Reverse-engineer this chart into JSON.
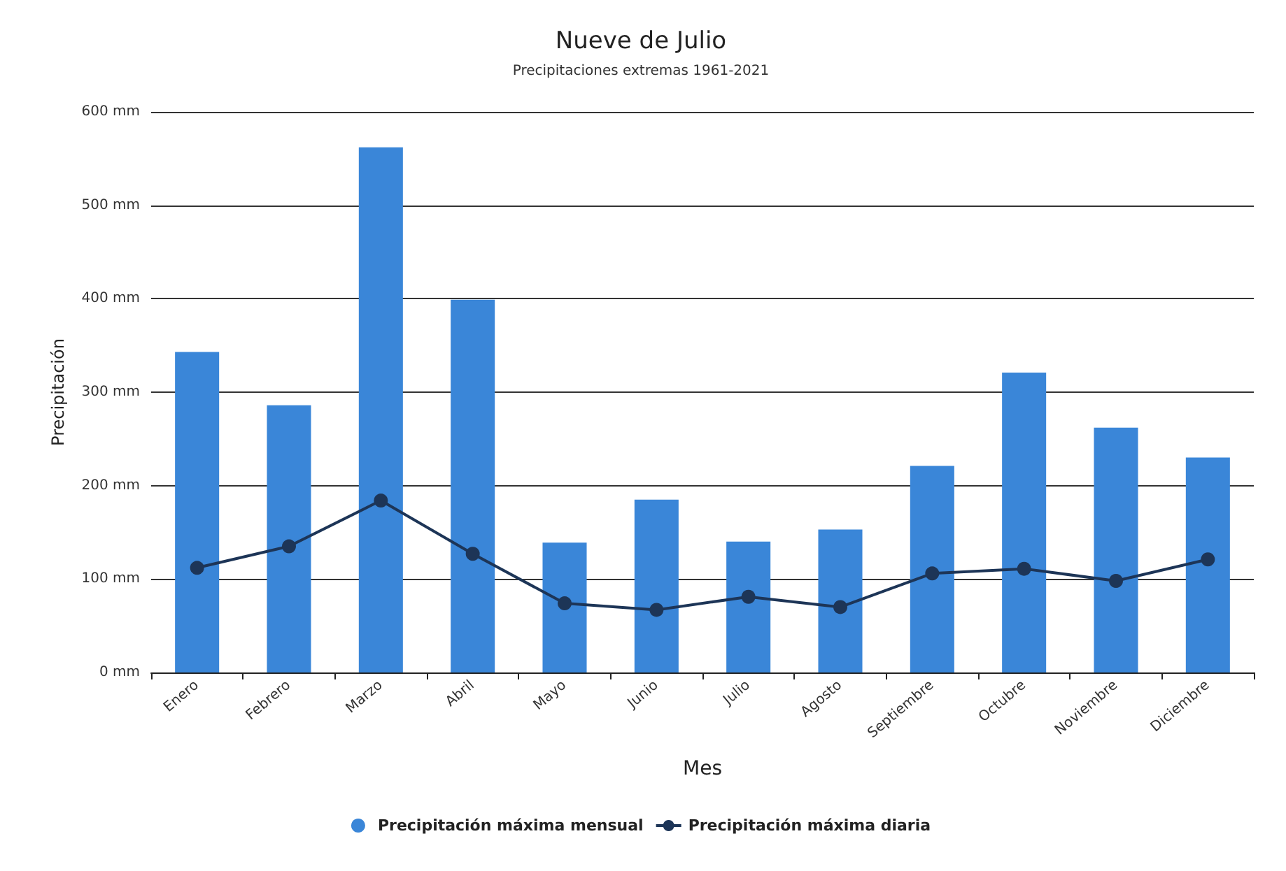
{
  "chart_data": {
    "type": "bar",
    "title": "Nueve de Julio",
    "subtitle": "Precipitaciones extremas 1961-2021",
    "xlabel": "Mes",
    "ylabel": "Precipitación",
    "categories": [
      "Enero",
      "Febrero",
      "Marzo",
      "Abril",
      "Mayo",
      "Junio",
      "Julio",
      "Agosto",
      "Septiembre",
      "Octubre",
      "Noviembre",
      "Diciembre"
    ],
    "series": [
      {
        "name": "Precipitación máxima mensual",
        "color": "#3a86d8",
        "values": [
          343,
          286,
          562,
          399,
          139,
          185,
          140,
          153,
          221,
          321,
          262,
          230
        ]
      },
      {
        "name": "Precipitación máxima diaria",
        "type": "line",
        "color": "#1d3557",
        "values": [
          112,
          135,
          184,
          127,
          74,
          67,
          81,
          70,
          106,
          111,
          98,
          121
        ]
      }
    ],
    "ylim": [
      0,
      600
    ],
    "yticks": [
      {
        "value": 0,
        "label": "0 mm"
      },
      {
        "value": 100,
        "label": "100 mm"
      },
      {
        "value": 200,
        "label": "200 mm"
      },
      {
        "value": 300,
        "label": "300 mm"
      },
      {
        "value": 400,
        "label": "400 mm"
      },
      {
        "value": 500,
        "label": "500 mm"
      },
      {
        "value": 600,
        "label": "600 mm"
      }
    ],
    "grid": "y",
    "legend": "bottom",
    "marker": "circle",
    "line_style": "solid"
  }
}
